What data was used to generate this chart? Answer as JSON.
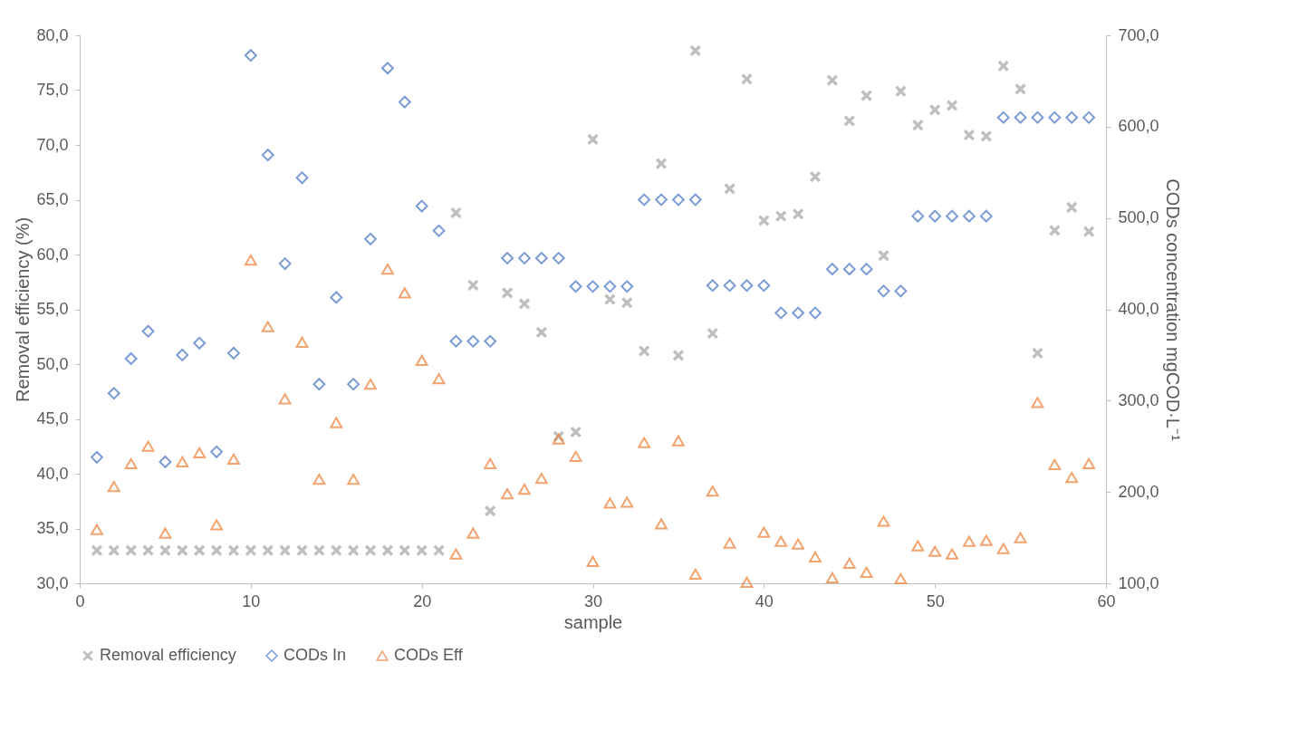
{
  "chart_data": {
    "type": "scatter",
    "xlabel": "sample",
    "ylabel": "Removal efficiency (%)",
    "y2label": "CODs concentration mgCOD·L⁻¹",
    "x": [
      1,
      2,
      3,
      4,
      5,
      6,
      7,
      8,
      9,
      10,
      11,
      12,
      13,
      14,
      15,
      16,
      17,
      18,
      19,
      20,
      21,
      22,
      23,
      24,
      25,
      26,
      27,
      28,
      29,
      30,
      31,
      32,
      33,
      34,
      35,
      36,
      37,
      38,
      39,
      40,
      41,
      42,
      43,
      44,
      45,
      46,
      47,
      48,
      49,
      50,
      51,
      52,
      53,
      54,
      55,
      56,
      57,
      58,
      59
    ],
    "series": [
      {
        "name": "Removal efficiency",
        "color": "#a5a5a5",
        "marker": "cross",
        "values": [
          33.0,
          33.0,
          33.0,
          33.0,
          33.0,
          33.0,
          33.0,
          33.0,
          33.0,
          33.0,
          33.0,
          33.0,
          33.0,
          33.0,
          33.0,
          33.0,
          33.0,
          33.0,
          33.0,
          33.0,
          33.0,
          63.8,
          57.2,
          36.6,
          56.5,
          55.5,
          52.9,
          43.4,
          43.8,
          70.5,
          55.9,
          55.6,
          51.2,
          68.3,
          50.8,
          78.6,
          52.8,
          66.0,
          76.0,
          63.1,
          63.5,
          63.7,
          67.1,
          75.9,
          72.2,
          74.5,
          59.9,
          74.9,
          71.8,
          73.2,
          73.6,
          70.9,
          70.8,
          77.2,
          75.1,
          51.0,
          62.2,
          64.3,
          62.1
        ]
      },
      {
        "name": "CODs In",
        "color": "#4472c4",
        "marker": "diamond",
        "axis": "y2",
        "values": [
          238,
          308,
          346,
          376,
          233,
          350,
          363,
          244,
          352,
          678,
          569,
          450,
          544,
          318,
          413,
          318,
          477,
          664,
          627,
          513,
          486,
          365,
          365,
          365,
          456,
          456,
          456,
          456,
          425,
          425,
          425,
          425,
          520,
          520,
          520,
          520,
          426,
          426,
          426,
          426,
          396,
          396,
          396,
          444,
          444,
          444,
          420,
          420,
          502,
          502,
          502,
          502,
          502,
          610,
          610,
          610,
          610,
          610,
          610
        ]
      },
      {
        "name": "CODs Eff",
        "color": "#ed7d31",
        "marker": "triangle",
        "axis": "y2",
        "values": [
          159,
          206,
          231,
          250,
          155,
          233,
          243,
          164,
          236,
          454,
          381,
          302,
          364,
          214,
          276,
          214,
          318,
          444,
          418,
          344,
          324,
          132,
          155,
          231,
          198,
          203,
          215,
          258,
          239,
          124,
          188,
          189,
          254,
          165,
          256,
          110,
          201,
          144,
          101,
          156,
          146,
          143,
          129,
          106,
          122,
          112,
          168,
          105,
          141,
          135,
          132,
          146,
          147,
          138,
          150,
          298,
          230,
          216,
          231
        ]
      }
    ],
    "xlim": [
      0,
      60
    ],
    "xticks": [
      0,
      10,
      20,
      30,
      40,
      50,
      60
    ],
    "ylim": [
      30,
      80
    ],
    "yticks": [
      {
        "value": 30,
        "label": "30,0"
      },
      {
        "value": 35,
        "label": "35,0"
      },
      {
        "value": 40,
        "label": "40,0"
      },
      {
        "value": 45,
        "label": "45,0"
      },
      {
        "value": 50,
        "label": "50,0"
      },
      {
        "value": 55,
        "label": "55,0"
      },
      {
        "value": 60,
        "label": "60,0"
      },
      {
        "value": 65,
        "label": "65,0"
      },
      {
        "value": 70,
        "label": "70,0"
      },
      {
        "value": 75,
        "label": "75,0"
      },
      {
        "value": 80,
        "label": "80,0"
      }
    ],
    "y2lim": [
      100,
      700
    ],
    "y2ticks": [
      {
        "value": 100,
        "label": "100,0"
      },
      {
        "value": 200,
        "label": "200,0"
      },
      {
        "value": 300,
        "label": "300,0"
      },
      {
        "value": 400,
        "label": "400,0"
      },
      {
        "value": 500,
        "label": "500,0"
      },
      {
        "value": 600,
        "label": "600,0"
      },
      {
        "value": 700,
        "label": "700,0"
      }
    ],
    "grid": false,
    "legend": "bottom"
  }
}
